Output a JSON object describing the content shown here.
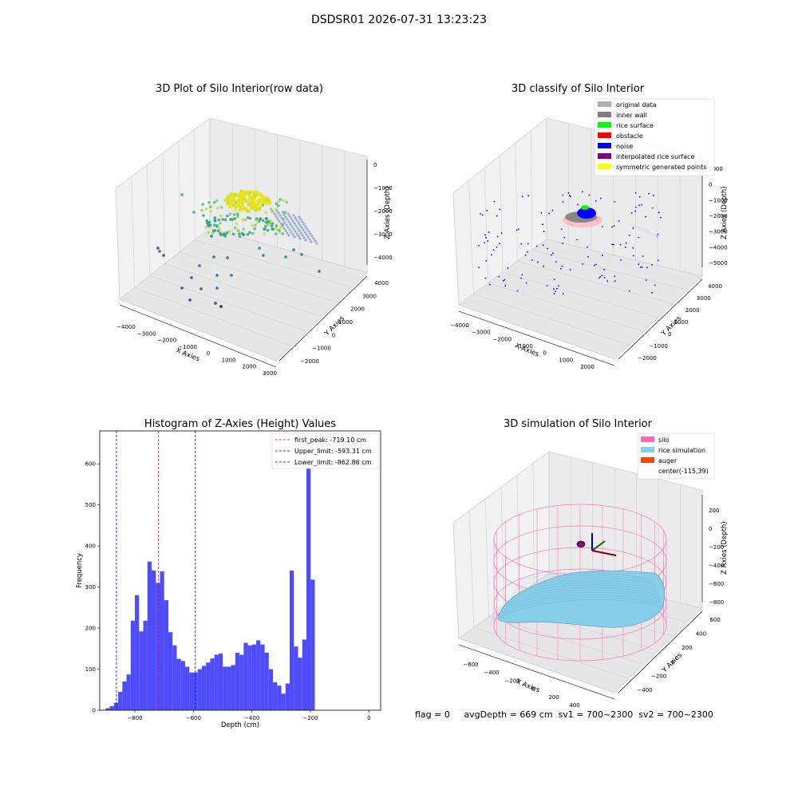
{
  "figure_title": "DSDSR01 2026-07-31 13:23:23",
  "footer": {
    "flag": "flag = 0",
    "avg": "avgDepth = 669 cm",
    "sv1": "sv1 = 700~2300",
    "sv2": "sv2 = 700~2300"
  },
  "colors": {
    "histogram_bar": "#4d4dff",
    "peak_line": "#ff0000",
    "limit_line": "#0000ff",
    "silo": "#ff69b4",
    "rice": "#87ceeb",
    "auger": "#ff4500",
    "pane": "#f2f2f2",
    "grid": "#cccccc"
  },
  "chart_data": [
    {
      "type": "scatter",
      "projection": "3d",
      "title": "3D Plot of Silo Interior(row data)",
      "xlabel": "X Axies",
      "ylabel": "Y Axies",
      "zlabel": "Z Axies (Depth)",
      "xticks": [
        "−4000",
        "−3000",
        "−2000",
        "−1000",
        "0",
        "1000",
        "2000",
        "3000"
      ],
      "yticks": [
        "−2000",
        "−1000",
        "0",
        "1000",
        "2000",
        "3000",
        "4000"
      ],
      "zticks": [
        "0",
        "−1000",
        "−2000",
        "−3000",
        "−4000"
      ],
      "colormap": "viridis"
    },
    {
      "type": "scatter",
      "projection": "3d",
      "title": "3D classify of Silo Interior",
      "xlabel": "X Axies",
      "ylabel": "Y Axies",
      "zlabel": "Z Axies (Depth)",
      "xticks": [
        "−4000",
        "−3000",
        "−2000",
        "−1000",
        "0",
        "1000",
        "2000"
      ],
      "yticks": [
        "−2000",
        "−1000",
        "0",
        "1000",
        "2000",
        "3000",
        "4000"
      ],
      "zticks": [
        "1000",
        "0",
        "−1000",
        "−2000",
        "−3000",
        "−4000",
        "−5000"
      ],
      "legend_position": "top-right",
      "legend": [
        {
          "label": "original data",
          "color": "#b0b0b0"
        },
        {
          "label": "inner wall",
          "color": "#808080"
        },
        {
          "label": "rice surface",
          "color": "#00ff00"
        },
        {
          "label": "obstacle",
          "color": "#ff0000"
        },
        {
          "label": "noise",
          "color": "#0000ff"
        },
        {
          "label": "interpolated rice surface",
          "color": "#800080"
        },
        {
          "label": "symmetric generated points",
          "color": "#ffff00"
        }
      ]
    },
    {
      "type": "bar",
      "title": "Histogram of Z-Axies (Height) Values",
      "xlabel": "Depth (cm)",
      "ylabel": "Frequency",
      "xlim": [
        -920,
        40
      ],
      "ylim": [
        0,
        680
      ],
      "bin_width": 14.3,
      "bin_start": -900,
      "values": [
        5,
        10,
        18,
        45,
        70,
        87,
        218,
        280,
        192,
        218,
        362,
        340,
        310,
        338,
        268,
        190,
        158,
        125,
        120,
        106,
        92,
        92,
        100,
        108,
        116,
        126,
        135,
        138,
        106,
        106,
        110,
        140,
        135,
        164,
        158,
        160,
        170,
        160,
        140,
        100,
        68,
        60,
        40,
        65,
        340,
        155,
        128,
        172,
        645,
        318
      ],
      "xticks": [
        -800,
        -600,
        -400,
        -200,
        0
      ],
      "xticklabels": [
        "−800",
        "−600",
        "−400",
        "−200",
        "0"
      ],
      "yticks": [
        0,
        100,
        200,
        300,
        400,
        500,
        600
      ],
      "yticklabels": [
        "0",
        "100",
        "200",
        "300",
        "400",
        "500",
        "600"
      ],
      "vlines": [
        {
          "x": -719.1,
          "label": "first_peak: -719.10 cm",
          "color": "#ff0000"
        },
        {
          "x": -593.31,
          "label": "Upper_limit: -593.31 cm",
          "color": "#0000ff"
        },
        {
          "x": -862.86,
          "label": "Lower_limit: -862.86 cm",
          "color": "#0000ff"
        }
      ],
      "legend_position": "top-right"
    },
    {
      "type": "surface",
      "projection": "3d",
      "title": "3D simulation of Silo Interior",
      "xlabel": "X Axies",
      "ylabel": "Y Axies",
      "zlabel": "Z Axies (Depth)",
      "xticks": [
        "−600",
        "−400",
        "−200",
        "0",
        "200",
        "400"
      ],
      "yticks": [
        "−400",
        "−200",
        "0",
        "200",
        "400",
        "600"
      ],
      "zticks": [
        "200",
        "0",
        "−200",
        "−400",
        "−600",
        "−800"
      ],
      "legend_position": "top-right",
      "legend": [
        {
          "label": "silo",
          "color": "#ff69b4"
        },
        {
          "label": "rice simulation",
          "color": "#87ceeb"
        },
        {
          "label": "auger",
          "color": "#ff4500"
        },
        {
          "label": "center(-115,39)",
          "color": ""
        }
      ]
    }
  ]
}
